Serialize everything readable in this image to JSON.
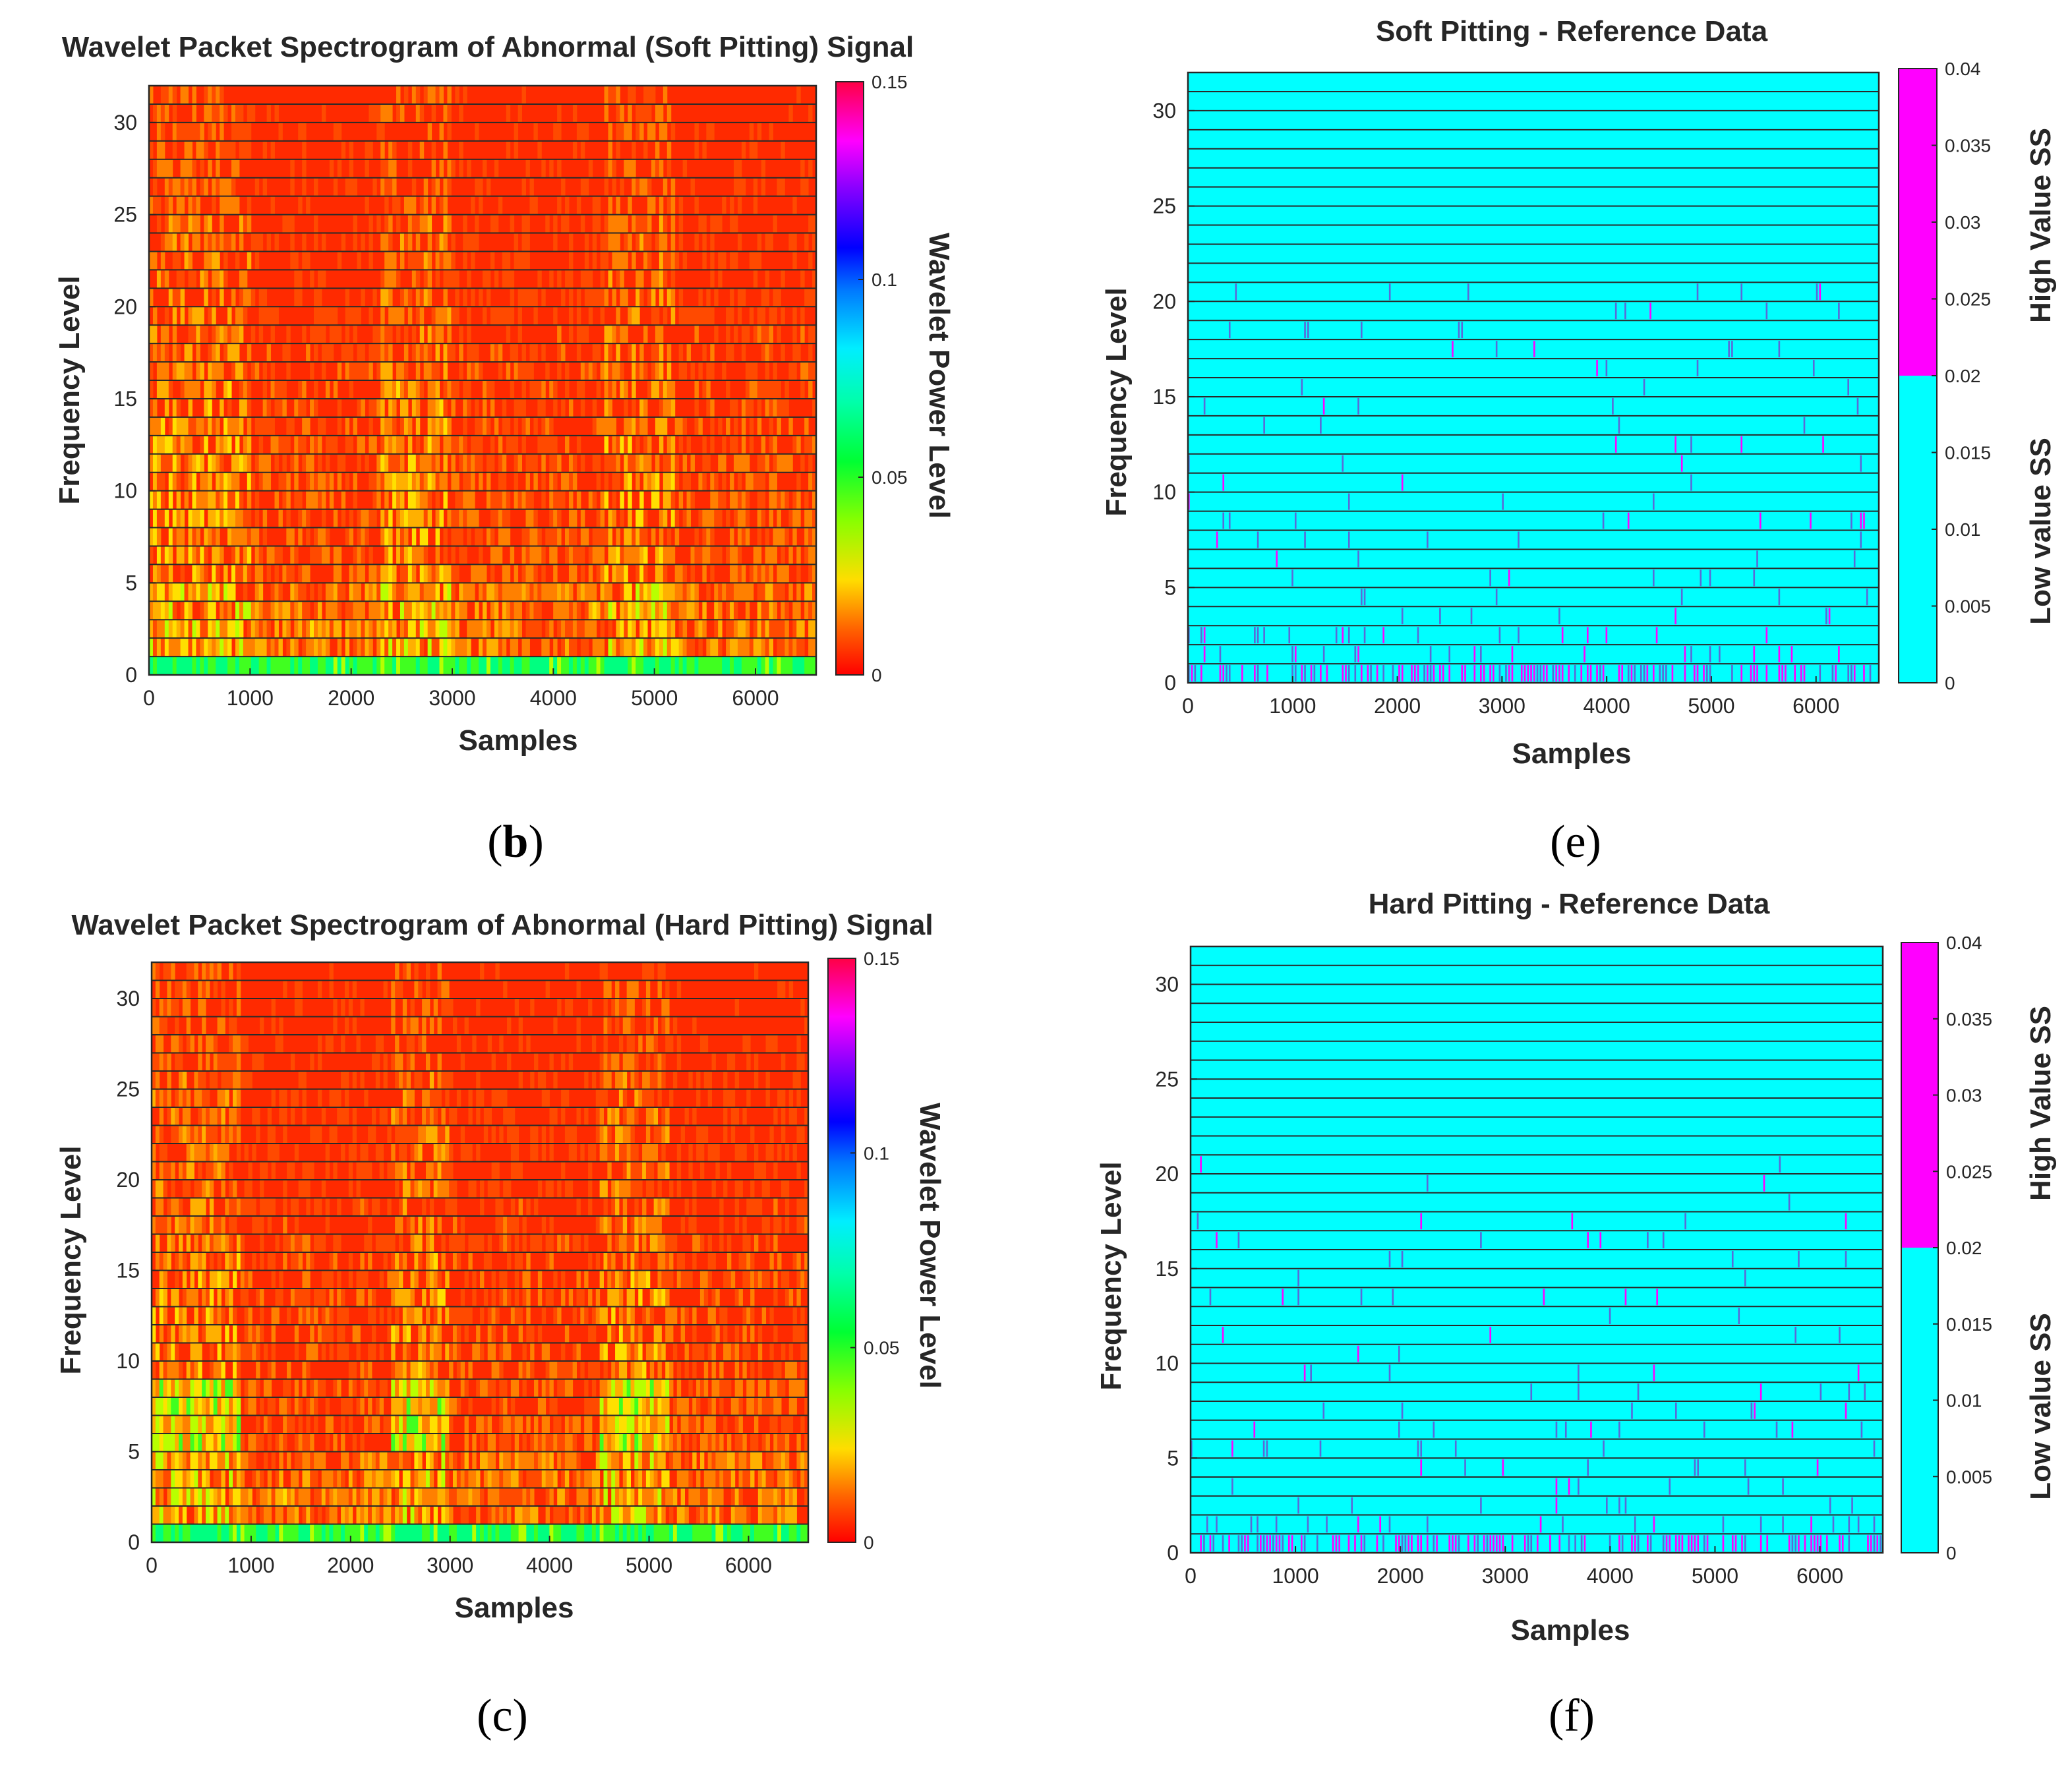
{
  "chart_data": [
    {
      "id": "b",
      "type": "heatmap",
      "title": "Wavelet Packet Spectrogram of Abnormal (Soft Pitting) Signal",
      "xlabel": "Samples",
      "ylabel": "Frequency Level",
      "xlim": [
        0,
        6600
      ],
      "ylim": [
        0,
        32
      ],
      "xticks": [
        0,
        1000,
        2000,
        3000,
        4000,
        5000,
        6000
      ],
      "yticks": [
        0,
        5,
        10,
        15,
        20,
        25,
        30
      ],
      "rows": 32,
      "colorbar": {
        "label": "Wavelet Power Level",
        "range": [
          0,
          0.15
        ],
        "ticks": [
          "0",
          "0.05",
          "0.1",
          "0.15"
        ],
        "colormap": "hsv"
      },
      "panel_open": "(",
      "panel_letter": "b",
      "panel_close": ")",
      "description_bands": {
        "band0": "green",
        "high_activity_ranges": [
          [
            0,
            1000
          ],
          [
            2300,
            3000
          ],
          [
            4500,
            5200
          ]
        ]
      }
    },
    {
      "id": "e",
      "type": "heatmap",
      "title": "Soft Pitting - Reference Data",
      "xlabel": "Samples",
      "ylabel": "Frequency Level",
      "xlim": [
        0,
        6600
      ],
      "ylim": [
        0,
        32
      ],
      "xticks": [
        0,
        1000,
        2000,
        3000,
        4000,
        5000,
        6000
      ],
      "yticks": [
        0,
        5,
        10,
        15,
        20,
        25,
        30
      ],
      "rows": 32,
      "colorbar": {
        "range": [
          0,
          0.04
        ],
        "ticks": [
          "0",
          "0.005",
          "0.01",
          "0.015",
          "0.02",
          "0.025",
          "0.03",
          "0.035",
          "0.04"
        ],
        "low_label": "Low value SS",
        "high_label": "High Value SS",
        "low_color": "#00ffff",
        "high_color": "#ff00ff",
        "split": 0.02
      },
      "panel_open": "(",
      "panel_letter": "e",
      "panel_close": ")"
    },
    {
      "id": "c",
      "type": "heatmap",
      "title": "Wavelet Packet Spectrogram of Abnormal (Hard Pitting) Signal",
      "xlabel": "Samples",
      "ylabel": "Frequency Level",
      "xlim": [
        0,
        6600
      ],
      "ylim": [
        0,
        32
      ],
      "xticks": [
        0,
        1000,
        2000,
        3000,
        4000,
        5000,
        6000
      ],
      "yticks": [
        0,
        5,
        10,
        15,
        20,
        25,
        30
      ],
      "rows": 32,
      "colorbar": {
        "label": "Wavelet Power Level",
        "range": [
          0,
          0.15
        ],
        "ticks": [
          "0",
          "0.05",
          "0.1",
          "0.15"
        ],
        "colormap": "hsv"
      },
      "panel_open": "(",
      "panel_letter": "c",
      "panel_close": ")",
      "description_bands": {
        "band0": "green",
        "high_activity_ranges": [
          [
            0,
            900
          ],
          [
            2400,
            3000
          ],
          [
            4500,
            5200
          ]
        ]
      }
    },
    {
      "id": "f",
      "type": "heatmap",
      "title": "Hard Pitting - Reference Data",
      "xlabel": "Samples",
      "ylabel": "Frequency Level",
      "xlim": [
        0,
        6600
      ],
      "ylim": [
        0,
        32
      ],
      "xticks": [
        0,
        1000,
        2000,
        3000,
        4000,
        5000,
        6000
      ],
      "yticks": [
        0,
        5,
        10,
        15,
        20,
        25,
        30
      ],
      "rows": 32,
      "colorbar": {
        "range": [
          0,
          0.04
        ],
        "ticks": [
          "0",
          "0.005",
          "0.01",
          "0.015",
          "0.02",
          "0.025",
          "0.03",
          "0.035",
          "0.04"
        ],
        "low_label": "Low value SS",
        "high_label": "High Value SS",
        "low_color": "#00ffff",
        "high_color": "#ff00ff",
        "split": 0.02
      },
      "panel_open": "(",
      "panel_letter": "f",
      "panel_close": ")"
    }
  ]
}
